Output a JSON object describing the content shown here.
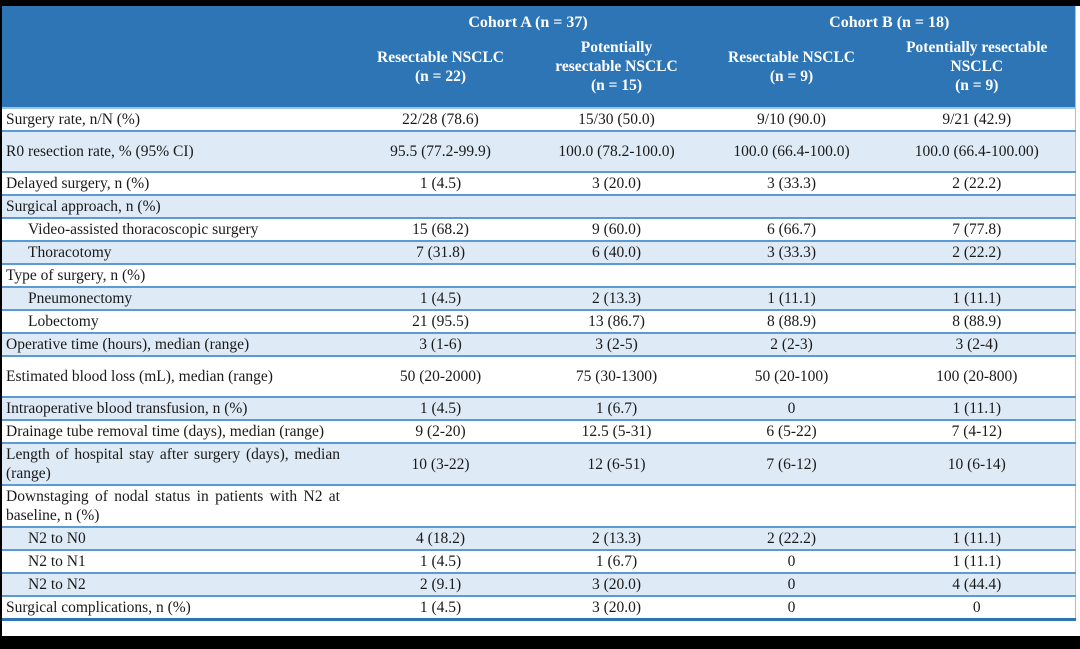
{
  "table": {
    "header": {
      "corner": "",
      "cohort_a": "Cohort A (n = 37)",
      "cohort_b": "Cohort B (n = 18)",
      "columns": [
        "Resectable NSCLC\n(n = 22)",
        "Potentially\nresectable NSCLC\n(n = 15)",
        "Resectable NSCLC\n(n = 9)",
        "Potentially resectable\nNSCLC\n(n = 9)"
      ]
    },
    "rows": [
      {
        "label": "Surgery rate, n/N (%)",
        "values": [
          "22/28 (78.6)",
          "15/30 (50.0)",
          "9/10 (90.0)",
          "9/21 (42.9)"
        ],
        "indent": false,
        "tall": false
      },
      {
        "label": "R0 resection rate, % (95% CI)",
        "values": [
          "95.5 (77.2-99.9)",
          "100.0 (78.2-100.0)",
          "100.0 (66.4-100.0)",
          "100.0 (66.4-100.00)"
        ],
        "indent": false,
        "tall": true
      },
      {
        "label": "Delayed surgery, n (%)",
        "values": [
          "1 (4.5)",
          "3 (20.0)",
          "3 (33.3)",
          "2 (22.2)"
        ],
        "indent": false,
        "tall": false
      },
      {
        "label": "Surgical approach, n (%)",
        "values": [
          "",
          "",
          "",
          ""
        ],
        "indent": false,
        "tall": false
      },
      {
        "label": "Video-assisted thoracoscopic surgery",
        "values": [
          "15 (68.2)",
          "9 (60.0)",
          "6 (66.7)",
          "7 (77.8)"
        ],
        "indent": true,
        "tall": false
      },
      {
        "label": "Thoracotomy",
        "values": [
          "7 (31.8)",
          "6 (40.0)",
          "3 (33.3)",
          "2 (22.2)"
        ],
        "indent": true,
        "tall": false
      },
      {
        "label": "Type of surgery, n (%)",
        "values": [
          "",
          "",
          "",
          ""
        ],
        "indent": false,
        "tall": false
      },
      {
        "label": "Pneumonectomy",
        "values": [
          "1 (4.5)",
          "2 (13.3)",
          "1 (11.1)",
          "1 (11.1)"
        ],
        "indent": true,
        "tall": false
      },
      {
        "label": "Lobectomy",
        "values": [
          "21 (95.5)",
          "13 (86.7)",
          "8 (88.9)",
          "8 (88.9)"
        ],
        "indent": true,
        "tall": false
      },
      {
        "label": "Operative time (hours), median (range)",
        "values": [
          "3 (1-6)",
          "3 (2-5)",
          "2 (2-3)",
          "3 (2-4)"
        ],
        "indent": false,
        "tall": false
      },
      {
        "label": "Estimated blood loss (mL), median (range)",
        "values": [
          "50 (20-2000)",
          "75 (30-1300)",
          "50 (20-100)",
          "100 (20-800)"
        ],
        "indent": false,
        "tall": true
      },
      {
        "label": "Intraoperative blood transfusion, n (%)",
        "values": [
          "1 (4.5)",
          "1 (6.7)",
          "0",
          "1 (11.1)"
        ],
        "indent": false,
        "tall": false
      },
      {
        "label": "Drainage tube removal time (days), median (range)",
        "values": [
          "9 (2-20)",
          "12.5 (5-31)",
          "6 (5-22)",
          "7 (4-12)"
        ],
        "indent": false,
        "tall": false
      },
      {
        "label": "Length of hospital stay after surgery (days), median (range)",
        "values": [
          "10 (3-22)",
          "12 (6-51)",
          "7 (6-12)",
          "10 (6-14)"
        ],
        "indent": false,
        "tall": false
      },
      {
        "label": "Downstaging of nodal status in patients with N2 at baseline, n (%)",
        "values": [
          "",
          "",
          "",
          ""
        ],
        "indent": false,
        "tall": false
      },
      {
        "label": "N2 to N0",
        "values": [
          "4 (18.2)",
          "2 (13.3)",
          "2 (22.2)",
          "1 (11.1)"
        ],
        "indent": true,
        "tall": false
      },
      {
        "label": "N2 to N1",
        "values": [
          "1 (4.5)",
          "1 (6.7)",
          "0",
          "1 (11.1)"
        ],
        "indent": true,
        "tall": false
      },
      {
        "label": "N2 to N2",
        "values": [
          "2 (9.1)",
          "3 (20.0)",
          "0",
          "4 (44.4)"
        ],
        "indent": true,
        "tall": false
      },
      {
        "label": "Surgical complications, n (%)",
        "values": [
          "1 (4.5)",
          "3 (20.0)",
          "0",
          "0"
        ],
        "indent": false,
        "tall": false
      }
    ]
  },
  "colors": {
    "header_bg": "#2E75B6",
    "header_text": "#FFFFFF",
    "stripe_row_bg": "#DEEAF6",
    "row_border": "#5B9BD5",
    "header_underline": "#9DC3E6",
    "bottom_border": "#2E75B6",
    "frame": "#000000",
    "body_text": "#1A1A1A"
  }
}
